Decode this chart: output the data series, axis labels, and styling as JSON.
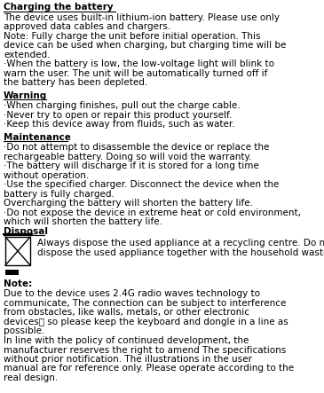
{
  "bg_color": "#ffffff",
  "text_color": "#000000",
  "figsize": [
    3.65,
    4.43
  ],
  "dpi": 100,
  "title": "Charging the battery",
  "warning_title": "Warning",
  "warning_lines": [
    "·When charging finishes, pull out the charge cable.",
    "·Never try to open or repair this product yourself.",
    "·Keep this device away from fluids, such as water."
  ],
  "maintenance_title": "Maintenance",
  "maintenance_lines": [
    "·Do not attempt to disassemble the device or replace the rechargeable battery. Doing so will void the warranty.",
    "·The battery will discharge if it is stored for a long time without operation.",
    "·Use the specified charger. Disconnect the device when the battery is fully charged.",
    "  Overcharging the battery will shorten the battery life.",
    "·Do not expose the device in extreme heat or cold environment, which will shorten the battery life."
  ],
  "disposal_title": "Disposal",
  "disposal_text": "Always dispose the used appliance at a recycling centre. Do not\ndispose the used appliance together with the household waste.",
  "note_title": "Note:",
  "note_line1": "Due to the device uses 2.4G radio waves technology to communicate,　 The connection can be subject to interference from obstacles, like walls, metals, or other electronic devices， so please keep the keyboard and dongle in a line as possible.",
  "note_line2": "In line with the policy of continued development, the manufacturer reserves the right to amend The specifications without prior notification. The illustrations in the user manual are for reference only. Please operate according to the real design.",
  "para1": "The device uses built-in lithium-ion battery. Please use only approved data cables and chargers.",
  "para2": "Note: Fully charge the unit before initial operation. This device can be used when charging, but charging time will be extended.",
  "para3": "·When the battery is low, the low-voltage light will blink to warn the user. The unit will be automatically turned off if the battery has been depleted."
}
